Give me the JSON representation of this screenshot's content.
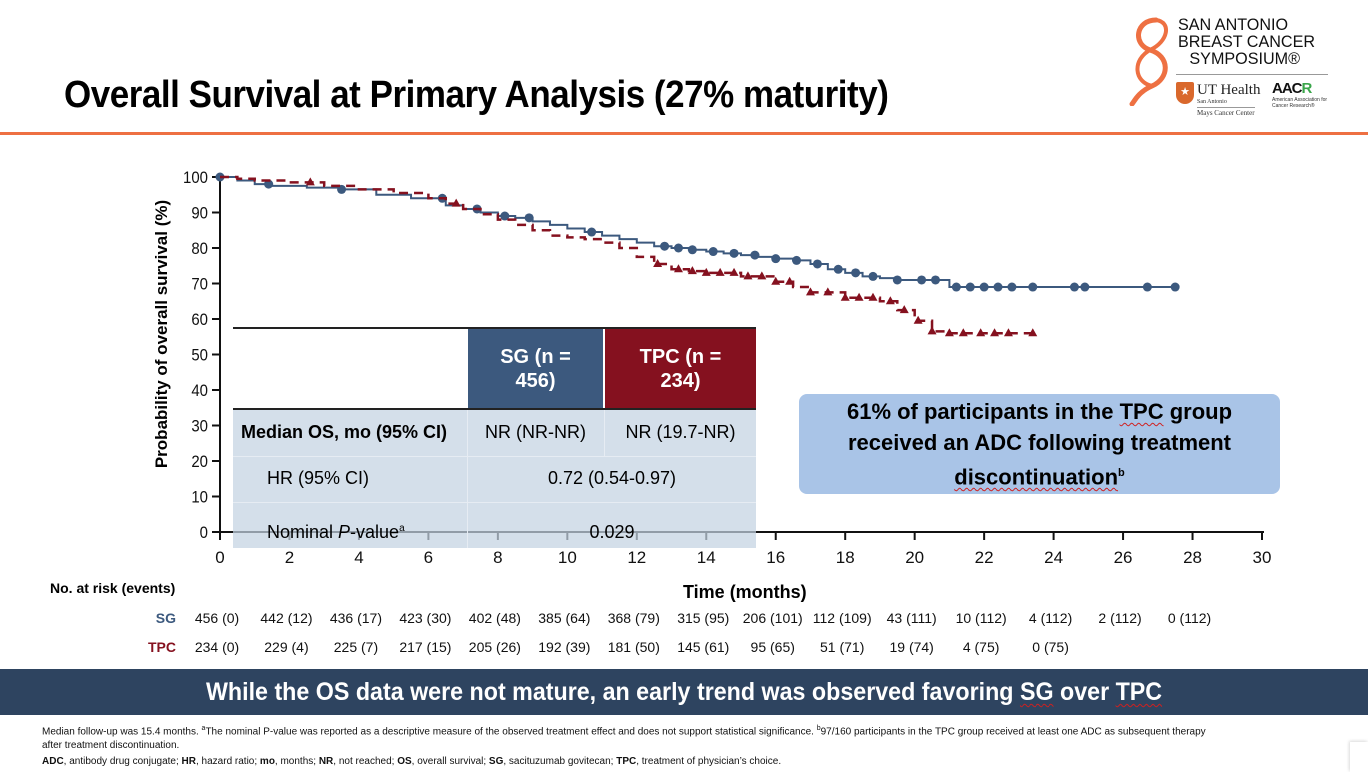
{
  "slide": {
    "title": "Overall Survival at Primary Analysis (27% maturity)",
    "accent_color": "#ee7042"
  },
  "logo": {
    "line1": "SAN ANTONIO",
    "line2": "BREAST CANCER",
    "line3": "SYMPOSIUM®",
    "ut_name": "UT Health",
    "ut_sub": "San Antonio",
    "ut_center": "Mays Cancer Center",
    "aacr_mark_a": "AAC",
    "aacr_mark_r": "R",
    "aacr_sub": "American Association for Cancer Research®"
  },
  "stats_table": {
    "headers": {
      "sg": "SG (n = 456)",
      "tpc": "TPC (n = 234)"
    },
    "rows": [
      {
        "label": "Median OS, mo (95% CI)",
        "sg": "NR (NR-NR)",
        "tpc": "NR (19.7-NR)"
      },
      {
        "label": "HR (95% CI)",
        "combined": "0.72 (0.54-0.97)"
      },
      {
        "label_pre": "Nominal ",
        "label_italic": "P",
        "label_post": "-value",
        "label_sup": "a",
        "combined": "0.029"
      }
    ]
  },
  "callout": {
    "text_pre": "61% of participants in the ",
    "text_tpc": "TPC",
    "text_mid": " group received an ADC following treatment ",
    "text_end": "discontinuation",
    "sup": "b"
  },
  "risk_table": {
    "title": "No. at risk (events)",
    "sg_label": "SG",
    "tpc_label": "TPC",
    "times": [
      0,
      2,
      4,
      6,
      8,
      10,
      12,
      14,
      16,
      18,
      20,
      22,
      24,
      26,
      28
    ],
    "sg": [
      "456 (0)",
      "442 (12)",
      "436 (17)",
      "423 (30)",
      "402 (48)",
      "385 (64)",
      "368 (79)",
      "315 (95)",
      "206 (101)",
      "112 (109)",
      "43 (111)",
      "10 (112)",
      "4 (112)",
      "2 (112)",
      "0 (112)"
    ],
    "tpc": [
      "234 (0)",
      "229 (4)",
      "225 (7)",
      "217 (15)",
      "205 (26)",
      "192 (39)",
      "181 (50)",
      "145 (61)",
      "95 (65)",
      "51 (71)",
      "19 (74)",
      "4 (75)",
      "0 (75)"
    ]
  },
  "banner": {
    "text_pre": "While the OS data were not mature, an early trend was observed favoring ",
    "sg": "SG",
    "mid": " over ",
    "tpc": "TPC"
  },
  "footnotes": {
    "line1_pre": "Median follow-up was 15.4 months. ",
    "line1_a": "a",
    "line1_mid": "The nominal P-value was reported as a descriptive measure of the observed treatment effect and does not support statistical significance. ",
    "line1_b": "b",
    "line1_post": "97/160 participants in the TPC group received at least one ADC as subsequent therapy",
    "line2": "after treatment discontinuation.",
    "abbrev": [
      {
        "term": "ADC",
        "def": ", antibody drug conjugate; "
      },
      {
        "term": "HR",
        "def": ", hazard ratio; "
      },
      {
        "term": "mo",
        "def": ", months; "
      },
      {
        "term": "NR",
        "def": ", not reached; "
      },
      {
        "term": "OS",
        "def": ", overall survival; "
      },
      {
        "term": "SG",
        "def": ", sacituzumab govitecan; "
      },
      {
        "term": "TPC",
        "def": ", treatment of physician’s choice."
      }
    ]
  },
  "chart_data": {
    "type": "line",
    "title": "Overall Survival at Primary Analysis (27% maturity)",
    "xlabel": "Time (months)",
    "ylabel": "Probability of overall survival (%)",
    "xlim": [
      0,
      30
    ],
    "ylim": [
      0,
      100
    ],
    "xticks": [
      0,
      2,
      4,
      6,
      8,
      10,
      12,
      14,
      16,
      18,
      20,
      22,
      24,
      26,
      28,
      30
    ],
    "yticks": [
      0,
      10,
      20,
      30,
      40,
      50,
      60,
      70,
      80,
      90,
      100
    ],
    "grid": false,
    "series": [
      {
        "name": "SG",
        "color": "#3c597e",
        "style": "solid-step",
        "marker": "circle",
        "x": [
          0,
          0.5,
          1.0,
          1.5,
          2.5,
          3.5,
          4.5,
          5.5,
          6.5,
          7.0,
          7.5,
          8.0,
          8.5,
          9.0,
          9.5,
          10.0,
          10.5,
          11.0,
          11.5,
          12.0,
          12.5,
          13.0,
          13.5,
          14.0,
          14.5,
          15.0,
          15.5,
          16.0,
          16.5,
          17.0,
          17.5,
          18.0,
          18.5,
          19.0,
          19.5,
          20.0,
          20.5,
          20.8,
          21.0,
          22.0,
          23.0,
          24.0,
          25.0,
          26.0,
          27.5
        ],
        "y": [
          100,
          99,
          98,
          97.5,
          97,
          96.5,
          95,
          94,
          92,
          91,
          90,
          89,
          88.5,
          87.5,
          86.5,
          85.5,
          84.5,
          83.5,
          82.5,
          81.5,
          80.5,
          80,
          79.5,
          79,
          78.5,
          78,
          77.5,
          77,
          76.5,
          75.5,
          74,
          73,
          72,
          71.5,
          71,
          71,
          71,
          71,
          69,
          69,
          69,
          69,
          69,
          69,
          69
        ],
        "censor_x": [
          0,
          1.4,
          3.5,
          6.4,
          7.4,
          8.2,
          8.9,
          10.7,
          12.8,
          13.2,
          13.6,
          14.2,
          14.8,
          15.4,
          16.0,
          16.6,
          17.2,
          17.8,
          18.3,
          18.8,
          19.5,
          20.2,
          20.6,
          21.2,
          21.6,
          22.0,
          22.4,
          22.8,
          23.4,
          24.6,
          24.9,
          26.7,
          27.5
        ]
      },
      {
        "name": "TPC",
        "color": "#85111f",
        "style": "dashed-step",
        "marker": "triangle",
        "x": [
          0,
          0.5,
          1.0,
          2.0,
          3.0,
          4.0,
          5.0,
          6.0,
          6.5,
          7.0,
          7.5,
          8.0,
          8.5,
          9.0,
          9.5,
          10.0,
          10.5,
          11.0,
          11.5,
          12.0,
          12.5,
          13.0,
          13.5,
          14.0,
          15.0,
          16.0,
          16.5,
          17.0,
          18.0,
          19.0,
          19.5,
          20.0,
          20.5,
          21.0,
          23.4
        ],
        "y": [
          100,
          99.5,
          99,
          98.5,
          97.5,
          96.5,
          95.5,
          94,
          92.5,
          91,
          89.5,
          88,
          86.5,
          85,
          83.5,
          83,
          82.5,
          81.5,
          80,
          77.5,
          75.5,
          74,
          73.5,
          73,
          72,
          70.5,
          69,
          67.5,
          66,
          65,
          62.5,
          59.5,
          56.5,
          56,
          56
        ],
        "censor_x": [
          2.6,
          6.8,
          12.6,
          13.2,
          13.6,
          14.0,
          14.4,
          14.8,
          15.2,
          15.6,
          16.0,
          16.4,
          17.0,
          17.5,
          18.0,
          18.4,
          18.8,
          19.3,
          19.7,
          20.1,
          20.5,
          21.0,
          21.4,
          21.9,
          22.3,
          22.7,
          23.4
        ]
      }
    ]
  }
}
